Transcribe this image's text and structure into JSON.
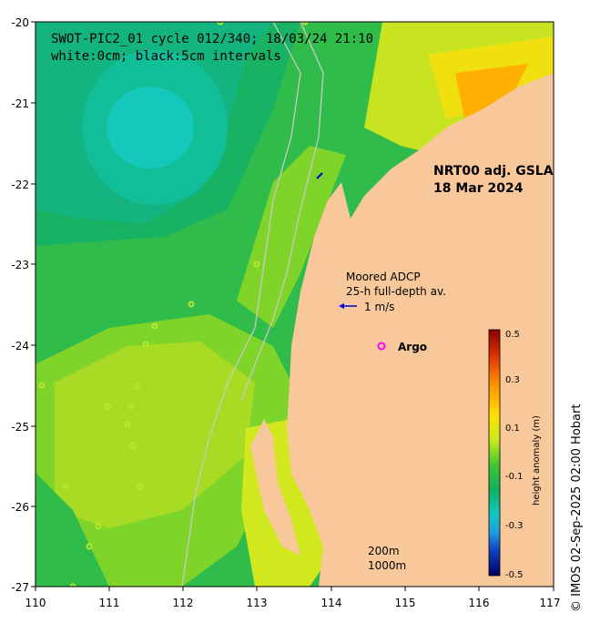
{
  "map": {
    "title_line1": "SWOT-PIC2_01 cycle 012/340; 18/03/24 21:10",
    "title_line2": "white:0cm; black:5cm intervals",
    "product_line1": "NRT00 adj. GSLA",
    "product_line2": "18 Mar 2024",
    "adcp_line1": "Moored ADCP",
    "adcp_line2": "25-h full-depth av.",
    "scale_vector_label": "1 m/s",
    "argo_label": "Argo",
    "isobath_label_1": "200m",
    "isobath_label_2": "1000m",
    "credit": "© IMOS 02-Sep-2025 02:00 Hobart",
    "x_ticks": [
      "110",
      "111",
      "112",
      "113",
      "114",
      "115",
      "116",
      "117"
    ],
    "y_ticks": [
      "-20",
      "-21",
      "-22",
      "-23",
      "-24",
      "-25",
      "-26",
      "-27"
    ],
    "lon_range": [
      110,
      117
    ],
    "lat_range": [
      -27,
      -20
    ]
  },
  "colorbar": {
    "label": "height anomaly (m)",
    "ticks": [
      "0.5",
      "0.3",
      "0.1",
      "-0.1",
      "-0.3",
      "-0.5"
    ],
    "range": [
      -0.5,
      0.5
    ]
  },
  "colors": {
    "land": "#f9c89a",
    "argo_marker": "#ff00ff",
    "adcp_vector": "#0000cc",
    "isobath": "#c8c8c8"
  }
}
